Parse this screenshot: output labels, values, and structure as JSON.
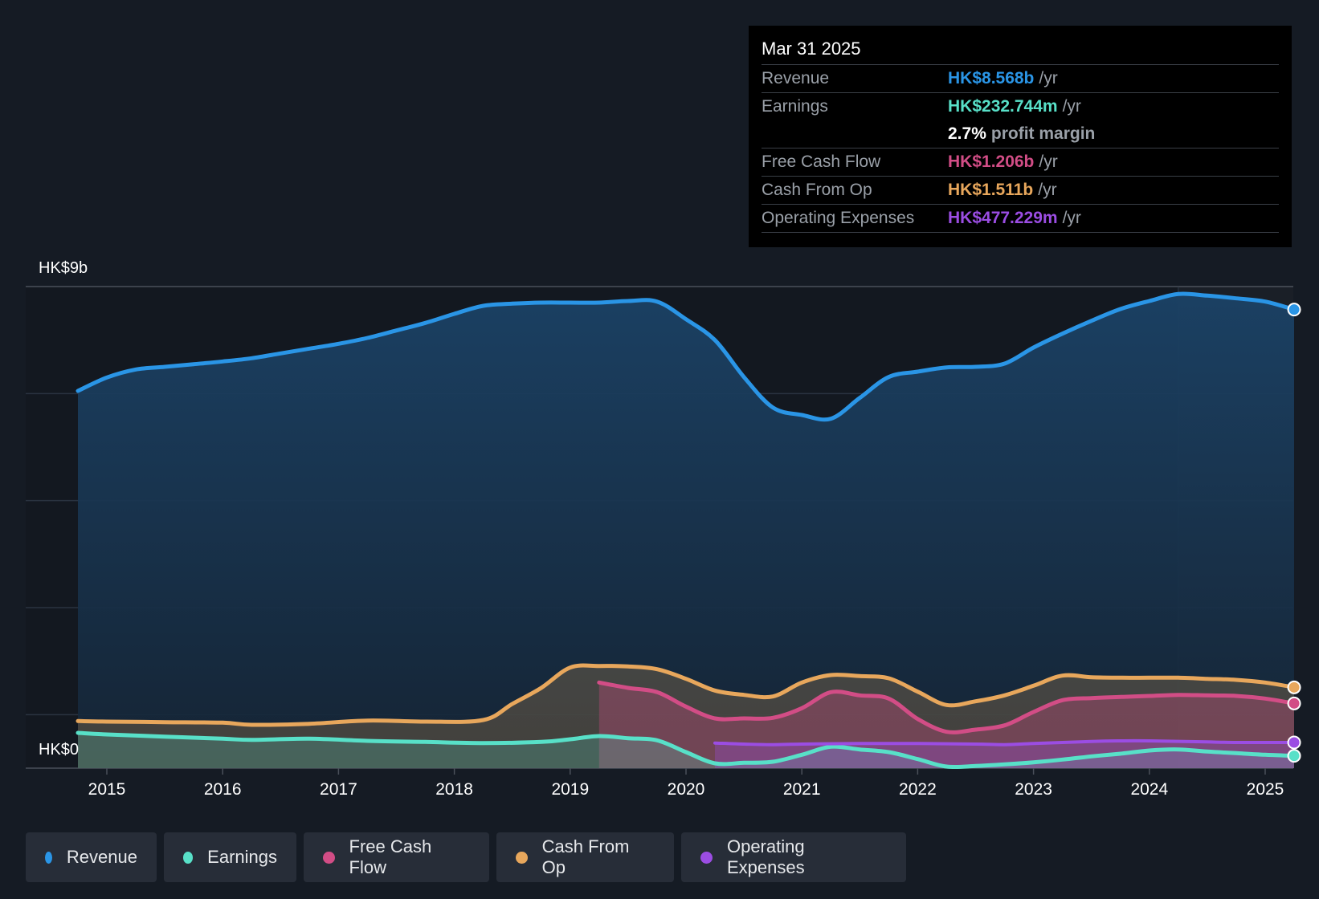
{
  "chart_data": {
    "type": "area",
    "currency_axis": {
      "top_label": "HK$9b",
      "bottom_label": "HK$0",
      "ylim": [
        0,
        9
      ]
    },
    "x_ticks": [
      "2015",
      "2016",
      "2017",
      "2018",
      "2019",
      "2020",
      "2021",
      "2022",
      "2023",
      "2024",
      "2025"
    ],
    "xlim": [
      2014.25,
      2025.25
    ],
    "series": [
      {
        "name": "Revenue",
        "color": "#2a95e6",
        "fill": true,
        "x": [
          2014.75,
          2015.0,
          2015.25,
          2015.5,
          2015.75,
          2016.0,
          2016.25,
          2016.5,
          2016.75,
          2017.0,
          2017.25,
          2017.5,
          2017.75,
          2018.0,
          2018.25,
          2018.5,
          2018.75,
          2019.0,
          2019.25,
          2019.5,
          2019.75,
          2020.0,
          2020.25,
          2020.5,
          2020.75,
          2021.0,
          2021.25,
          2021.5,
          2021.75,
          2022.0,
          2022.25,
          2022.5,
          2022.75,
          2023.0,
          2023.25,
          2023.5,
          2023.75,
          2024.0,
          2024.25,
          2024.5,
          2024.75,
          2025.0,
          2025.25
        ],
        "values": [
          7.05,
          7.3,
          7.45,
          7.5,
          7.55,
          7.6,
          7.66,
          7.75,
          7.84,
          7.93,
          8.04,
          8.18,
          8.32,
          8.49,
          8.64,
          8.68,
          8.7,
          8.7,
          8.7,
          8.73,
          8.72,
          8.39,
          8.0,
          7.31,
          6.74,
          6.6,
          6.53,
          6.92,
          7.31,
          7.41,
          7.49,
          7.5,
          7.56,
          7.86,
          8.12,
          8.36,
          8.58,
          8.73,
          8.86,
          8.83,
          8.78,
          8.72,
          8.57
        ]
      },
      {
        "name": "Earnings",
        "color": "#58e0c8",
        "fill": true,
        "x": [
          2014.75,
          2015.0,
          2015.5,
          2016.0,
          2016.25,
          2016.75,
          2017.25,
          2017.75,
          2018.25,
          2018.75,
          2019.0,
          2019.25,
          2019.5,
          2019.75,
          2020.0,
          2020.25,
          2020.5,
          2020.75,
          2021.0,
          2021.25,
          2021.5,
          2021.75,
          2022.0,
          2022.25,
          2022.5,
          2022.75,
          2023.0,
          2023.25,
          2023.5,
          2023.75,
          2024.0,
          2024.25,
          2024.5,
          2024.75,
          2025.0,
          2025.25
        ],
        "values": [
          0.66,
          0.63,
          0.59,
          0.55,
          0.53,
          0.55,
          0.51,
          0.49,
          0.47,
          0.49,
          0.54,
          0.6,
          0.56,
          0.52,
          0.3,
          0.09,
          0.1,
          0.12,
          0.25,
          0.4,
          0.35,
          0.3,
          0.17,
          0.03,
          0.04,
          0.07,
          0.11,
          0.16,
          0.22,
          0.27,
          0.33,
          0.35,
          0.31,
          0.28,
          0.25,
          0.23
        ]
      },
      {
        "name": "Free Cash Flow",
        "color": "#d24d86",
        "fill": true,
        "x": [
          2019.25,
          2019.5,
          2019.75,
          2020.0,
          2020.25,
          2020.5,
          2020.75,
          2021.0,
          2021.25,
          2021.5,
          2021.75,
          2022.0,
          2022.25,
          2022.5,
          2022.75,
          2023.0,
          2023.25,
          2023.5,
          2023.75,
          2024.0,
          2024.25,
          2024.5,
          2024.75,
          2025.0,
          2025.25
        ],
        "values": [
          1.6,
          1.5,
          1.42,
          1.15,
          0.93,
          0.93,
          0.94,
          1.12,
          1.42,
          1.36,
          1.3,
          0.92,
          0.68,
          0.72,
          0.8,
          1.05,
          1.27,
          1.31,
          1.33,
          1.35,
          1.37,
          1.36,
          1.35,
          1.3,
          1.21
        ]
      },
      {
        "name": "Cash From Op",
        "color": "#e8a75c",
        "fill": true,
        "x": [
          2014.75,
          2015.0,
          2015.5,
          2016.0,
          2016.25,
          2016.75,
          2017.25,
          2017.75,
          2018.25,
          2018.5,
          2018.75,
          2019.0,
          2019.25,
          2019.5,
          2019.75,
          2020.0,
          2020.25,
          2020.5,
          2020.75,
          2021.0,
          2021.25,
          2021.5,
          2021.75,
          2022.0,
          2022.25,
          2022.5,
          2022.75,
          2023.0,
          2023.25,
          2023.5,
          2023.75,
          2024.0,
          2024.25,
          2024.5,
          2024.75,
          2025.0,
          2025.25
        ],
        "values": [
          0.88,
          0.87,
          0.86,
          0.85,
          0.81,
          0.83,
          0.89,
          0.87,
          0.9,
          1.2,
          1.5,
          1.88,
          1.91,
          1.9,
          1.85,
          1.67,
          1.45,
          1.37,
          1.34,
          1.6,
          1.74,
          1.72,
          1.68,
          1.43,
          1.18,
          1.25,
          1.36,
          1.54,
          1.73,
          1.7,
          1.69,
          1.69,
          1.69,
          1.67,
          1.65,
          1.6,
          1.51
        ]
      },
      {
        "name": "Operating Expenses",
        "color": "#9b4de3",
        "fill": true,
        "x": [
          2020.25,
          2020.5,
          2020.75,
          2021.0,
          2021.5,
          2022.0,
          2022.5,
          2022.75,
          2023.0,
          2023.5,
          2023.75,
          2024.0,
          2024.5,
          2024.75,
          2025.0,
          2025.25
        ],
        "values": [
          0.47,
          0.45,
          0.44,
          0.45,
          0.46,
          0.46,
          0.45,
          0.44,
          0.46,
          0.5,
          0.51,
          0.51,
          0.49,
          0.48,
          0.48,
          0.48
        ]
      }
    ],
    "gridlines_at": [
      1.0,
      3.0,
      5.0,
      7.0,
      9.0
    ],
    "highlight_start": 2024.25,
    "marker_x": 2025.25
  },
  "tooltip": {
    "date": "Mar 31 2025",
    "rows": [
      {
        "label": "Revenue",
        "value": "HK$8.568b",
        "unit": "/yr",
        "color": "#2a95e6"
      },
      {
        "label": "Earnings",
        "value": "HK$232.744m",
        "unit": "/yr",
        "color": "#58e0c8"
      },
      {
        "label": "",
        "value": "2.7%",
        "unit": "profit margin",
        "color": "#ffffff"
      },
      {
        "label": "Free Cash Flow",
        "value": "HK$1.206b",
        "unit": "/yr",
        "color": "#d24d86"
      },
      {
        "label": "Cash From Op",
        "value": "HK$1.511b",
        "unit": "/yr",
        "color": "#e8a75c"
      },
      {
        "label": "Operating Expenses",
        "value": "HK$477.229m",
        "unit": "/yr",
        "color": "#9b4de3"
      }
    ]
  },
  "legend": [
    {
      "label": "Revenue",
      "color": "#2a95e6"
    },
    {
      "label": "Earnings",
      "color": "#58e0c8"
    },
    {
      "label": "Free Cash Flow",
      "color": "#d24d86"
    },
    {
      "label": "Cash From Op",
      "color": "#e8a75c"
    },
    {
      "label": "Operating Expenses",
      "color": "#9b4de3"
    }
  ]
}
